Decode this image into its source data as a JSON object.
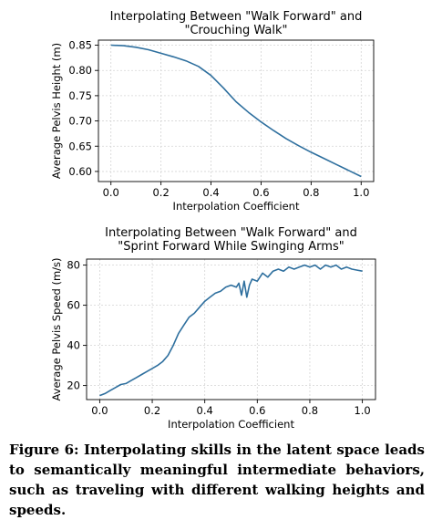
{
  "chart_data": [
    {
      "type": "line",
      "title_lines": [
        "Interpolating Between \"Walk Forward\" and",
        "\"Crouching Walk\""
      ],
      "xlabel": "Interpolation Coefficient",
      "ylabel": "Average Pelvis Height (m)",
      "xlim": [
        -0.05,
        1.05
      ],
      "ylim": [
        0.58,
        0.86
      ],
      "xticks": [
        0.0,
        0.2,
        0.4,
        0.6,
        0.8,
        1.0
      ],
      "yticks": [
        0.6,
        0.65,
        0.7,
        0.75,
        0.8,
        0.85
      ],
      "xtick_labels": [
        "0.0",
        "0.2",
        "0.4",
        "0.6",
        "0.8",
        "1.0"
      ],
      "ytick_labels": [
        "0.60",
        "0.65",
        "0.70",
        "0.75",
        "0.80",
        "0.85"
      ],
      "grid": true,
      "color": "#2e6f9e",
      "x": [
        0.0,
        0.05,
        0.1,
        0.15,
        0.2,
        0.25,
        0.3,
        0.35,
        0.4,
        0.45,
        0.5,
        0.55,
        0.6,
        0.65,
        0.7,
        0.75,
        0.8,
        0.85,
        0.9,
        0.95,
        1.0
      ],
      "y": [
        0.85,
        0.849,
        0.846,
        0.841,
        0.834,
        0.827,
        0.819,
        0.808,
        0.79,
        0.765,
        0.738,
        0.717,
        0.698,
        0.681,
        0.665,
        0.651,
        0.638,
        0.626,
        0.614,
        0.602,
        0.59
      ]
    },
    {
      "type": "line",
      "title_lines": [
        "Interpolating Between \"Walk Forward\" and",
        "\"Sprint Forward While Swinging Arms\""
      ],
      "xlabel": "Interpolation Coefficient",
      "ylabel": "Average Pelvis Speed (m/s)",
      "xlim": [
        -0.05,
        1.05
      ],
      "ylim": [
        13,
        83
      ],
      "xticks": [
        0.0,
        0.2,
        0.4,
        0.6,
        0.8,
        1.0
      ],
      "yticks": [
        20,
        40,
        60,
        80
      ],
      "xtick_labels": [
        "0.0",
        "0.2",
        "0.4",
        "0.6",
        "0.8",
        "1.0"
      ],
      "ytick_labels": [
        "20",
        "40",
        "60",
        "80"
      ],
      "grid": true,
      "color": "#2e6f9e",
      "x": [
        0.0,
        0.02,
        0.04,
        0.06,
        0.08,
        0.1,
        0.12,
        0.14,
        0.16,
        0.18,
        0.2,
        0.22,
        0.24,
        0.26,
        0.28,
        0.3,
        0.32,
        0.34,
        0.36,
        0.38,
        0.4,
        0.42,
        0.44,
        0.46,
        0.48,
        0.5,
        0.52,
        0.53,
        0.54,
        0.55,
        0.56,
        0.57,
        0.58,
        0.6,
        0.62,
        0.64,
        0.66,
        0.68,
        0.7,
        0.72,
        0.74,
        0.76,
        0.78,
        0.8,
        0.82,
        0.84,
        0.86,
        0.88,
        0.9,
        0.92,
        0.94,
        0.96,
        0.98,
        1.0
      ],
      "y": [
        15,
        16,
        17.5,
        19,
        20.5,
        21,
        22.5,
        24,
        25.5,
        27,
        28.5,
        30,
        32,
        35,
        40,
        46,
        50,
        54,
        56,
        59,
        62,
        64,
        66,
        67,
        69,
        70,
        69,
        71,
        65,
        72,
        64,
        70,
        73,
        72,
        76,
        74,
        77,
        78,
        77,
        79,
        78,
        79,
        80,
        79,
        80,
        78,
        80,
        79,
        80,
        78,
        79,
        78,
        77.5,
        77
      ]
    }
  ],
  "caption": "Figure 6: Interpolating skills in the latent space leads to semantically meaningful intermediate behaviors, such as traveling with different walking heights and speeds."
}
